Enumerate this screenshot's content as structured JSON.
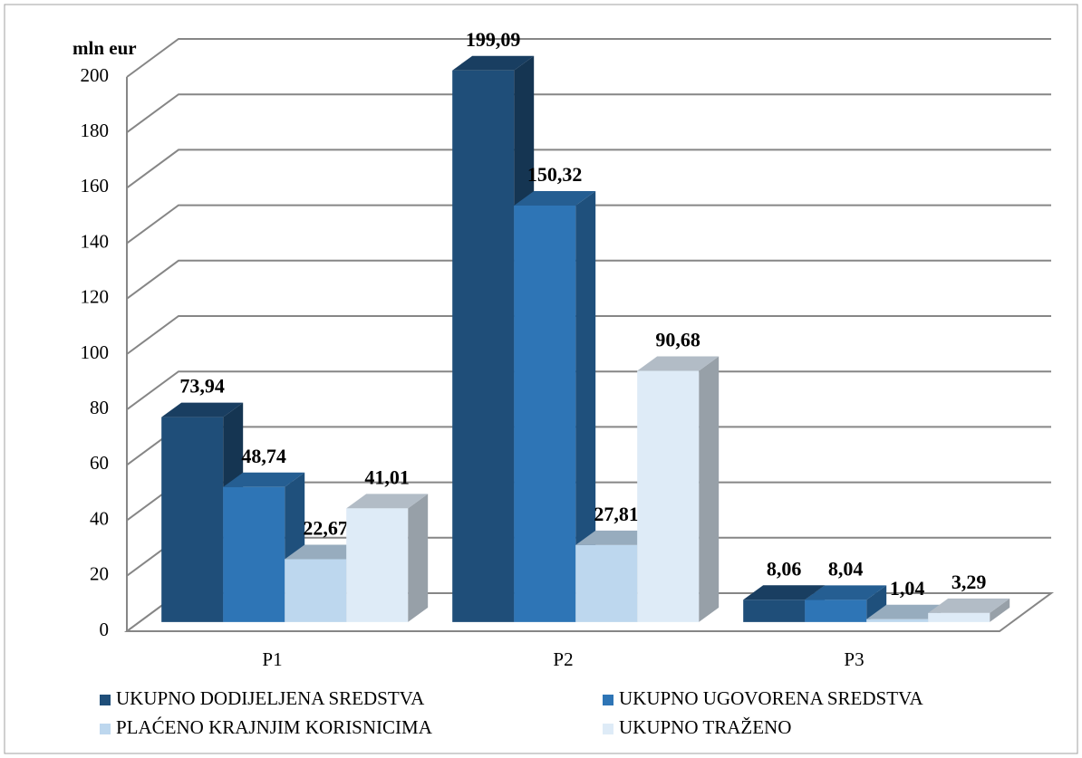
{
  "chart_data": {
    "type": "bar3d",
    "y_label": "mln eur",
    "categories": [
      "P1",
      "P2",
      "P3"
    ],
    "series": [
      {
        "name": "UKUPNO DODIJELJENA SREDSTVA",
        "color": "#1f4e79",
        "values": [
          73.94,
          199.09,
          8.06
        ],
        "value_labels": [
          "73,94",
          "199,09",
          "8,06"
        ]
      },
      {
        "name": "UKUPNO UGOVORENA SREDSTVA",
        "color": "#2e75b6",
        "values": [
          48.74,
          150.32,
          8.04
        ],
        "value_labels": [
          "48,74",
          "150,32",
          "8,04"
        ]
      },
      {
        "name": "PLAĆENO KRAJNJIM KORISNICIMA",
        "color": "#bdd7ee",
        "values": [
          22.67,
          27.81,
          1.04
        ],
        "value_labels": [
          "22,67",
          "27,81",
          "1,04"
        ]
      },
      {
        "name": "UKUPNO TRAŽENO",
        "color": "#deebf7",
        "values": [
          41.01,
          90.68,
          3.29
        ],
        "value_labels": [
          "41,01",
          "90,68",
          "3,29"
        ]
      }
    ],
    "ylim": [
      0,
      200
    ],
    "yticks": [
      0,
      20,
      40,
      60,
      80,
      100,
      120,
      140,
      160,
      180,
      200
    ],
    "grid": true
  }
}
